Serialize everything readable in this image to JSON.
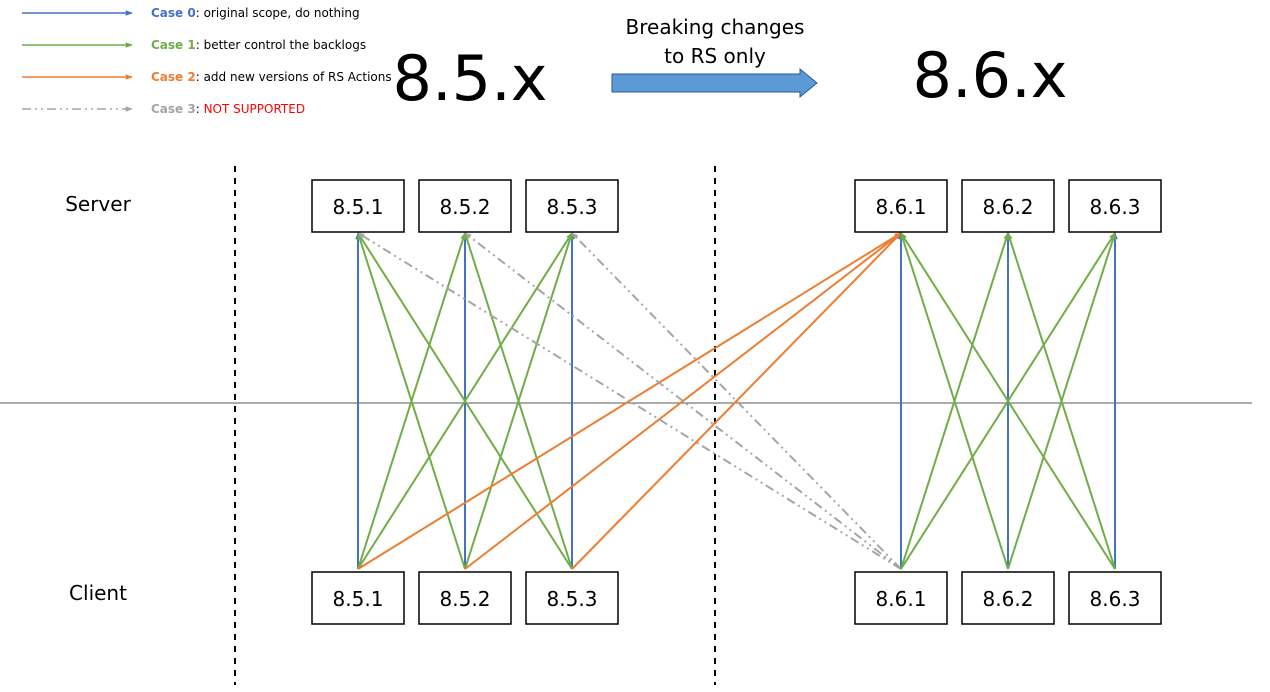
{
  "legend": [
    {
      "case_label": "Case 0",
      "desc": ": original scope, do nothing",
      "color": "#4472C4",
      "style": "solid"
    },
    {
      "case_label": "Case 1",
      "desc": ": better control the backlogs",
      "color": "#70AD47",
      "style": "solid"
    },
    {
      "case_label": "Case 2",
      "desc": ": add new versions of RS Actions",
      "color": "#ED7D31",
      "style": "solid"
    },
    {
      "case_label": "Case 3",
      "desc": ": ",
      "desc_highlight": "NOT SUPPORTED",
      "highlight_color": "#FF0000",
      "color": "#A5A5A5",
      "style": "dashdot"
    }
  ],
  "titles": {
    "left": "8.5.x",
    "right": "8.6.x"
  },
  "change_note": {
    "line1": "Breaking changes",
    "line2": "to RS only",
    "arrow_color": "#5B9BD5"
  },
  "side_labels": {
    "server": "Server",
    "client": "Client"
  },
  "server_nodes": [
    "8.5.1",
    "8.5.2",
    "8.5.3",
    "8.6.1",
    "8.6.2",
    "8.6.3"
  ],
  "client_nodes": [
    "8.5.1",
    "8.5.2",
    "8.5.3",
    "8.6.1",
    "8.6.2",
    "8.6.3"
  ],
  "connections": [
    {
      "client": 0,
      "server": 0,
      "case": 0
    },
    {
      "client": 1,
      "server": 1,
      "case": 0
    },
    {
      "client": 2,
      "server": 2,
      "case": 0
    },
    {
      "client": 0,
      "server": 1,
      "case": 1
    },
    {
      "client": 0,
      "server": 2,
      "case": 1
    },
    {
      "client": 1,
      "server": 0,
      "case": 1
    },
    {
      "client": 1,
      "server": 2,
      "case": 1
    },
    {
      "client": 2,
      "server": 0,
      "case": 1
    },
    {
      "client": 2,
      "server": 1,
      "case": 1
    },
    {
      "client": 0,
      "server": 3,
      "case": 2
    },
    {
      "client": 1,
      "server": 3,
      "case": 2
    },
    {
      "client": 2,
      "server": 3,
      "case": 2
    },
    {
      "client": 3,
      "server": 0,
      "case": 3
    },
    {
      "client": 3,
      "server": 1,
      "case": 3
    },
    {
      "client": 3,
      "server": 2,
      "case": 3
    },
    {
      "client": 3,
      "server": 3,
      "case": 0
    },
    {
      "client": 4,
      "server": 4,
      "case": 0
    },
    {
      "client": 5,
      "server": 5,
      "case": 0
    },
    {
      "client": 3,
      "server": 4,
      "case": 1
    },
    {
      "client": 3,
      "server": 5,
      "case": 1
    },
    {
      "client": 4,
      "server": 3,
      "case": 1
    },
    {
      "client": 4,
      "server": 5,
      "case": 1
    },
    {
      "client": 5,
      "server": 3,
      "case": 1
    },
    {
      "client": 5,
      "server": 4,
      "case": 1
    }
  ]
}
